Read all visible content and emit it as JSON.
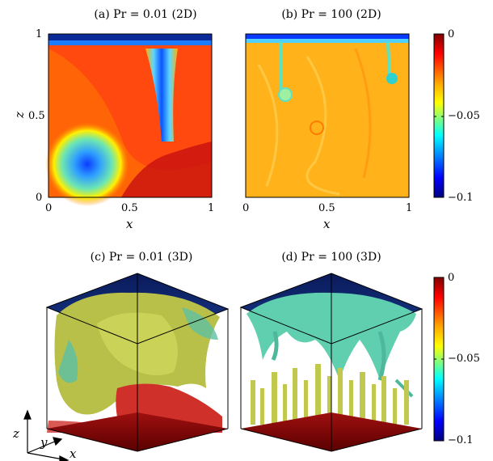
{
  "panels": {
    "a": {
      "title": "(a) Pr = 0.01 (2D)"
    },
    "b": {
      "title": "(b) Pr = 100 (2D)"
    },
    "c": {
      "title": "(c) Pr = 0.01 (3D)"
    },
    "d": {
      "title": "(d) Pr = 100 (3D)"
    }
  },
  "axes": {
    "x_label": "x",
    "z_label": "z",
    "x_ticks": [
      "0",
      "0.5",
      "1"
    ],
    "z_ticks": [
      "0",
      "0.5",
      "1"
    ]
  },
  "colorbar": {
    "ticks": [
      "0",
      "−0.05",
      "−0.1"
    ],
    "colors": [
      "#800000",
      "#ff0000",
      "#ffa500",
      "#ffff00",
      "#7fff7f",
      "#00ffff",
      "#0080ff",
      "#0000ff",
      "#00007f"
    ]
  },
  "axes3d": {
    "z": "z",
    "y": "y",
    "x": "x"
  }
}
